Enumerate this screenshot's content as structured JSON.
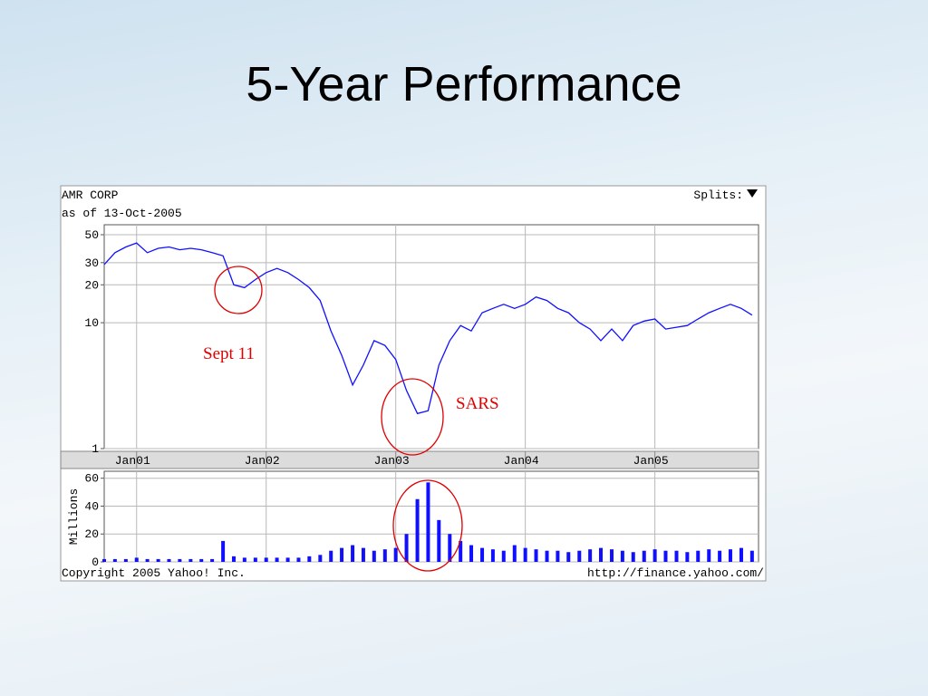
{
  "title": "5-Year Performance",
  "chart_data": [
    {
      "type": "line",
      "title": "AMR CORP",
      "subtitle": "as of 13-Oct-2005",
      "splits_label": "Splits:",
      "x": [
        2000.75,
        2000.833,
        2000.917,
        2001.0,
        2001.083,
        2001.167,
        2001.25,
        2001.333,
        2001.417,
        2001.5,
        2001.583,
        2001.667,
        2001.75,
        2001.833,
        2001.917,
        2002.0,
        2002.083,
        2002.167,
        2002.25,
        2002.333,
        2002.417,
        2002.5,
        2002.583,
        2002.667,
        2002.75,
        2002.833,
        2002.917,
        2003.0,
        2003.083,
        2003.167,
        2003.25,
        2003.333,
        2003.417,
        2003.5,
        2003.583,
        2003.667,
        2003.75,
        2003.833,
        2003.917,
        2004.0,
        2004.083,
        2004.167,
        2004.25,
        2004.333,
        2004.417,
        2004.5,
        2004.583,
        2004.667,
        2004.75,
        2004.833,
        2004.917,
        2005.0,
        2005.083,
        2005.167,
        2005.25,
        2005.333,
        2005.417,
        2005.5,
        2005.583,
        2005.667,
        2005.75
      ],
      "values": [
        29,
        36,
        40,
        43,
        36,
        39,
        40,
        38,
        39,
        38,
        36,
        34,
        20,
        19,
        22,
        25,
        27,
        25,
        22,
        19,
        15,
        8.6,
        5.5,
        3.2,
        4.6,
        7.2,
        6.6,
        5.1,
        2.9,
        1.9,
        2.0,
        4.6,
        7.2,
        9.5,
        8.6,
        12,
        13,
        14,
        13,
        14,
        16,
        15,
        13,
        12,
        10,
        8.9,
        7.2,
        8.9,
        7.2,
        9.5,
        10.3,
        10.7,
        8.9,
        9.2,
        9.5,
        10.7,
        12,
        13,
        14,
        13,
        11.5
      ],
      "color": "#1010ff",
      "xlim": [
        2000.75,
        2005.8
      ],
      "xticks": [
        {
          "value": 2001,
          "label": "Jan01"
        },
        {
          "value": 2002,
          "label": "Jan02"
        },
        {
          "value": 2003,
          "label": "Jan03"
        },
        {
          "value": 2004,
          "label": "Jan04"
        },
        {
          "value": 2005,
          "label": "Jan05"
        }
      ],
      "ylim": [
        1,
        60
      ],
      "yticks": [
        1,
        10,
        20,
        30,
        50
      ],
      "log_scale": true,
      "grid": true,
      "annotations": [
        "Sept 11",
        "SARS"
      ]
    },
    {
      "type": "bar",
      "ylabel": "Millions",
      "x": [
        2000.75,
        2000.833,
        2000.917,
        2001.0,
        2001.083,
        2001.167,
        2001.25,
        2001.333,
        2001.417,
        2001.5,
        2001.583,
        2001.667,
        2001.75,
        2001.833,
        2001.917,
        2002.0,
        2002.083,
        2002.167,
        2002.25,
        2002.333,
        2002.417,
        2002.5,
        2002.583,
        2002.667,
        2002.75,
        2002.833,
        2002.917,
        2003.0,
        2003.083,
        2003.167,
        2003.25,
        2003.333,
        2003.417,
        2003.5,
        2003.583,
        2003.667,
        2003.75,
        2003.833,
        2003.917,
        2004.0,
        2004.083,
        2004.167,
        2004.25,
        2004.333,
        2004.417,
        2004.5,
        2004.583,
        2004.667,
        2004.75,
        2004.833,
        2004.917,
        2005.0,
        2005.083,
        2005.167,
        2005.25,
        2005.333,
        2005.417,
        2005.5,
        2005.583,
        2005.667,
        2005.75
      ],
      "values": [
        2,
        2,
        2,
        3,
        2,
        2,
        2,
        2,
        2,
        2,
        2,
        15,
        4,
        3,
        3,
        3,
        3,
        3,
        3,
        4,
        5,
        8,
        10,
        12,
        10,
        8,
        9,
        10,
        20,
        45,
        57,
        30,
        20,
        15,
        12,
        10,
        9,
        8,
        12,
        10,
        9,
        8,
        8,
        7,
        8,
        9,
        10,
        9,
        8,
        7,
        8,
        9,
        8,
        8,
        7,
        8,
        9,
        8,
        9,
        10,
        8
      ],
      "color": "#1010ff",
      "xlim": [
        2000.75,
        2005.8
      ],
      "xticks": [
        2001,
        2002,
        2003,
        2004,
        2005
      ],
      "ylim": [
        0,
        65
      ],
      "yticks": [
        0,
        20,
        40,
        60
      ],
      "grid": true,
      "copyright": "Copyright 2005 Yahoo! Inc.",
      "source": "http://finance.yahoo.com/"
    }
  ]
}
